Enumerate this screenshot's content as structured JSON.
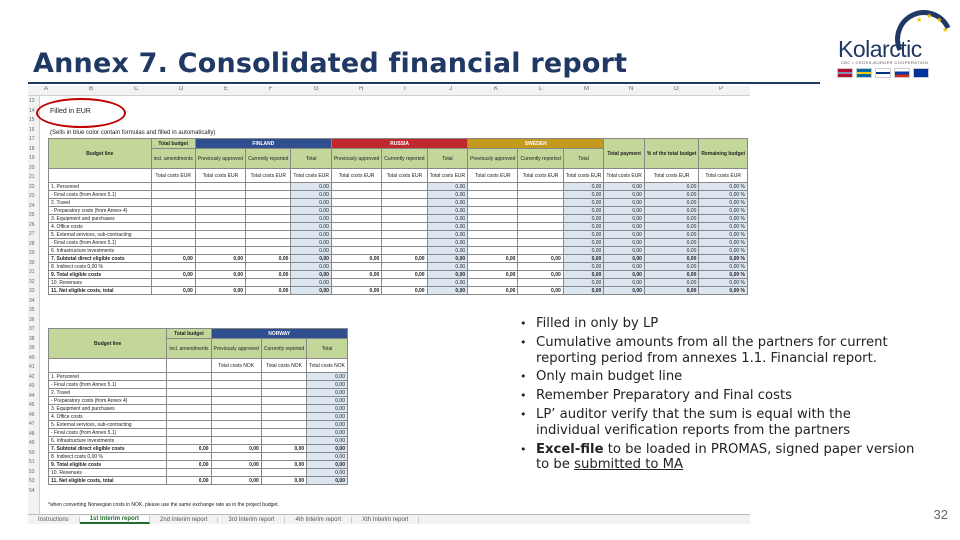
{
  "title": "Annex 7. Consolidated financial report",
  "logo": {
    "name": "Kolarctic",
    "subtitle": "CBC • CROSS-BORDER COOPERATION"
  },
  "sheet": {
    "col_letters": [
      "A",
      "B",
      "C",
      "D",
      "E",
      "F",
      "G",
      "H",
      "I",
      "J",
      "K",
      "L",
      "M",
      "N",
      "O",
      "P"
    ],
    "row_numbers_top": [
      "13",
      "14",
      "15",
      "16",
      "17",
      "18",
      "19",
      "20",
      "21",
      "22",
      "23",
      "24",
      "25",
      "26",
      "27",
      "28",
      "29",
      "30",
      "31",
      "32",
      "33",
      "34",
      "35"
    ],
    "row_numbers_bottom": [
      "36",
      "37",
      "38",
      "39",
      "40",
      "41",
      "42",
      "43",
      "44",
      "45",
      "46",
      "47",
      "48",
      "49",
      "50",
      "51",
      "52",
      "53",
      "54"
    ],
    "filled_in": "Filled in EUR",
    "note": "(Sells in blue color contain formulas and filled in automatically)",
    "header": {
      "budget_line": "Budget line",
      "total_budget": "Total budget",
      "incl_amendments": "incl. amendments",
      "finland": "FINLAND",
      "russia": "RUSSIA",
      "sweden": "SWEDEN",
      "norway": "NORWAY",
      "prev_approved": "Previously approved",
      "curr_reported": "Currently reported",
      "total": "Total",
      "total_payment": "Total payment",
      "pct_total": "% of the total budget",
      "remaining": "Remaining budget",
      "total_costs_eur": "Total costs EUR",
      "total_costs_nok": "Total costs NOK"
    },
    "rows": [
      {
        "label": "1. Personnel",
        "cells": [
          "",
          "",
          "",
          "0,00",
          "",
          "",
          "0,00",
          "",
          "",
          "0,00",
          "0,00",
          "0,00",
          "0,00 %",
          "0,00"
        ]
      },
      {
        "label": "- Final costs (from Annex 5.1)",
        "cells": [
          "",
          "",
          "",
          "0,00",
          "",
          "",
          "0,00",
          "",
          "",
          "0,00",
          "0,00",
          "0,00",
          "0,00 %",
          "0,00"
        ]
      },
      {
        "label": "2. Travel",
        "cells": [
          "",
          "",
          "",
          "0,00",
          "",
          "",
          "0,00",
          "",
          "",
          "0,00",
          "0,00",
          "0,00",
          "0,00 %",
          "0,00"
        ]
      },
      {
        "label": "- Preparatory costs (from Annex 4)",
        "cells": [
          "",
          "",
          "",
          "0,00",
          "",
          "",
          "0,00",
          "",
          "",
          "0,00",
          "0,00",
          "0,00",
          "0,00 %",
          "0,00"
        ]
      },
      {
        "label": "3. Equipment and purchases",
        "cells": [
          "",
          "",
          "",
          "0,00",
          "",
          "",
          "0,00",
          "",
          "",
          "0,00",
          "0,00",
          "0,00",
          "0,00 %",
          "0,00"
        ]
      },
      {
        "label": "4. Office costs",
        "cells": [
          "",
          "",
          "",
          "0,00",
          "",
          "",
          "0,00",
          "",
          "",
          "0,00",
          "0,00",
          "0,00",
          "0,00 %",
          "0,00"
        ]
      },
      {
        "label": "5. External services, sub-contracting",
        "cells": [
          "",
          "",
          "",
          "0,00",
          "",
          "",
          "0,00",
          "",
          "",
          "0,00",
          "0,00",
          "0,00",
          "0,00 %",
          "0,00"
        ]
      },
      {
        "label": "- Final costs (from Annex 5.1)",
        "cells": [
          "",
          "",
          "",
          "0,00",
          "",
          "",
          "0,00",
          "",
          "",
          "0,00",
          "0,00",
          "0,00",
          "0,00 %",
          "0,00"
        ]
      },
      {
        "label": "6. Infrastructure investments",
        "cells": [
          "",
          "",
          "",
          "0,00",
          "",
          "",
          "0,00",
          "",
          "",
          "0,00",
          "0,00",
          "0,00",
          "0,00 %",
          "0,00"
        ]
      },
      {
        "label": "7. Subtotal direct eligible costs",
        "cells": [
          "0,00",
          "0,00",
          "0,00",
          "0,00",
          "0,00",
          "0,00",
          "0,00",
          "0,00",
          "0,00",
          "0,00",
          "0,00",
          "0,00",
          "0,00 %",
          "0,00"
        ],
        "bold": true
      },
      {
        "label": "8. Indirect costs",
        "pct": "0,00 %",
        "cells": [
          "",
          "",
          "",
          "0,00",
          "",
          "",
          "0,00",
          "",
          "",
          "0,00",
          "0,00",
          "0,00",
          "0,00 %",
          "0,00"
        ]
      },
      {
        "label": "9. Total eligible costs",
        "cells": [
          "0,00",
          "0,00",
          "0,00",
          "0,00",
          "0,00",
          "0,00",
          "0,00",
          "0,00",
          "0,00",
          "0,00",
          "0,00",
          "0,00",
          "0,00 %",
          "0,00"
        ],
        "bold": true
      },
      {
        "label": "10. Revenues",
        "cells": [
          "",
          "",
          "",
          "0,00",
          "",
          "",
          "0,00",
          "",
          "",
          "0,00",
          "0,00",
          "0,00",
          "0,00 %",
          "0,00"
        ]
      },
      {
        "label": "11. Net eligible costs, total",
        "cells": [
          "0,00",
          "0,00",
          "0,00",
          "0,00",
          "0,00",
          "0,00",
          "0,00",
          "0,00",
          "0,00",
          "0,00",
          "0,00",
          "0,00",
          "0,00 %",
          "0,00"
        ],
        "bold": true
      }
    ],
    "footnote": "*when converting Norwegian costs in NOK, please use the same exchange rate as in the project budget.",
    "tabs": [
      "Instructions",
      "1st Interim report",
      "2nd Interim report",
      "3rd Interim report",
      "4th Interim report",
      "Xth Interim report"
    ],
    "active_tab": 1
  },
  "bullets": [
    {
      "text": "Filled in only by LP"
    },
    {
      "text": "Cumulative amounts from all the partners for current reporting period from annexes 1.1. Financial report."
    },
    {
      "text": "Only main budget line"
    },
    {
      "text": "Remember Preparatory and Final costs"
    },
    {
      "text": "LP’ auditor verify that the sum is equal with the individual verification reports from the partners"
    },
    {
      "bold_part": "Excel-file",
      "text_part": " to be loaded in PROMAS, signed paper version to be ",
      "underlined_part": "submitted to MA"
    }
  ],
  "page_number": "32",
  "colors": {
    "title": "#1f3864",
    "green_header": "#c4d79b",
    "finland": "#2f4f8f",
    "russia": "#c0282d",
    "sweden": "#c49a1c",
    "ellipse": "#c00000"
  }
}
